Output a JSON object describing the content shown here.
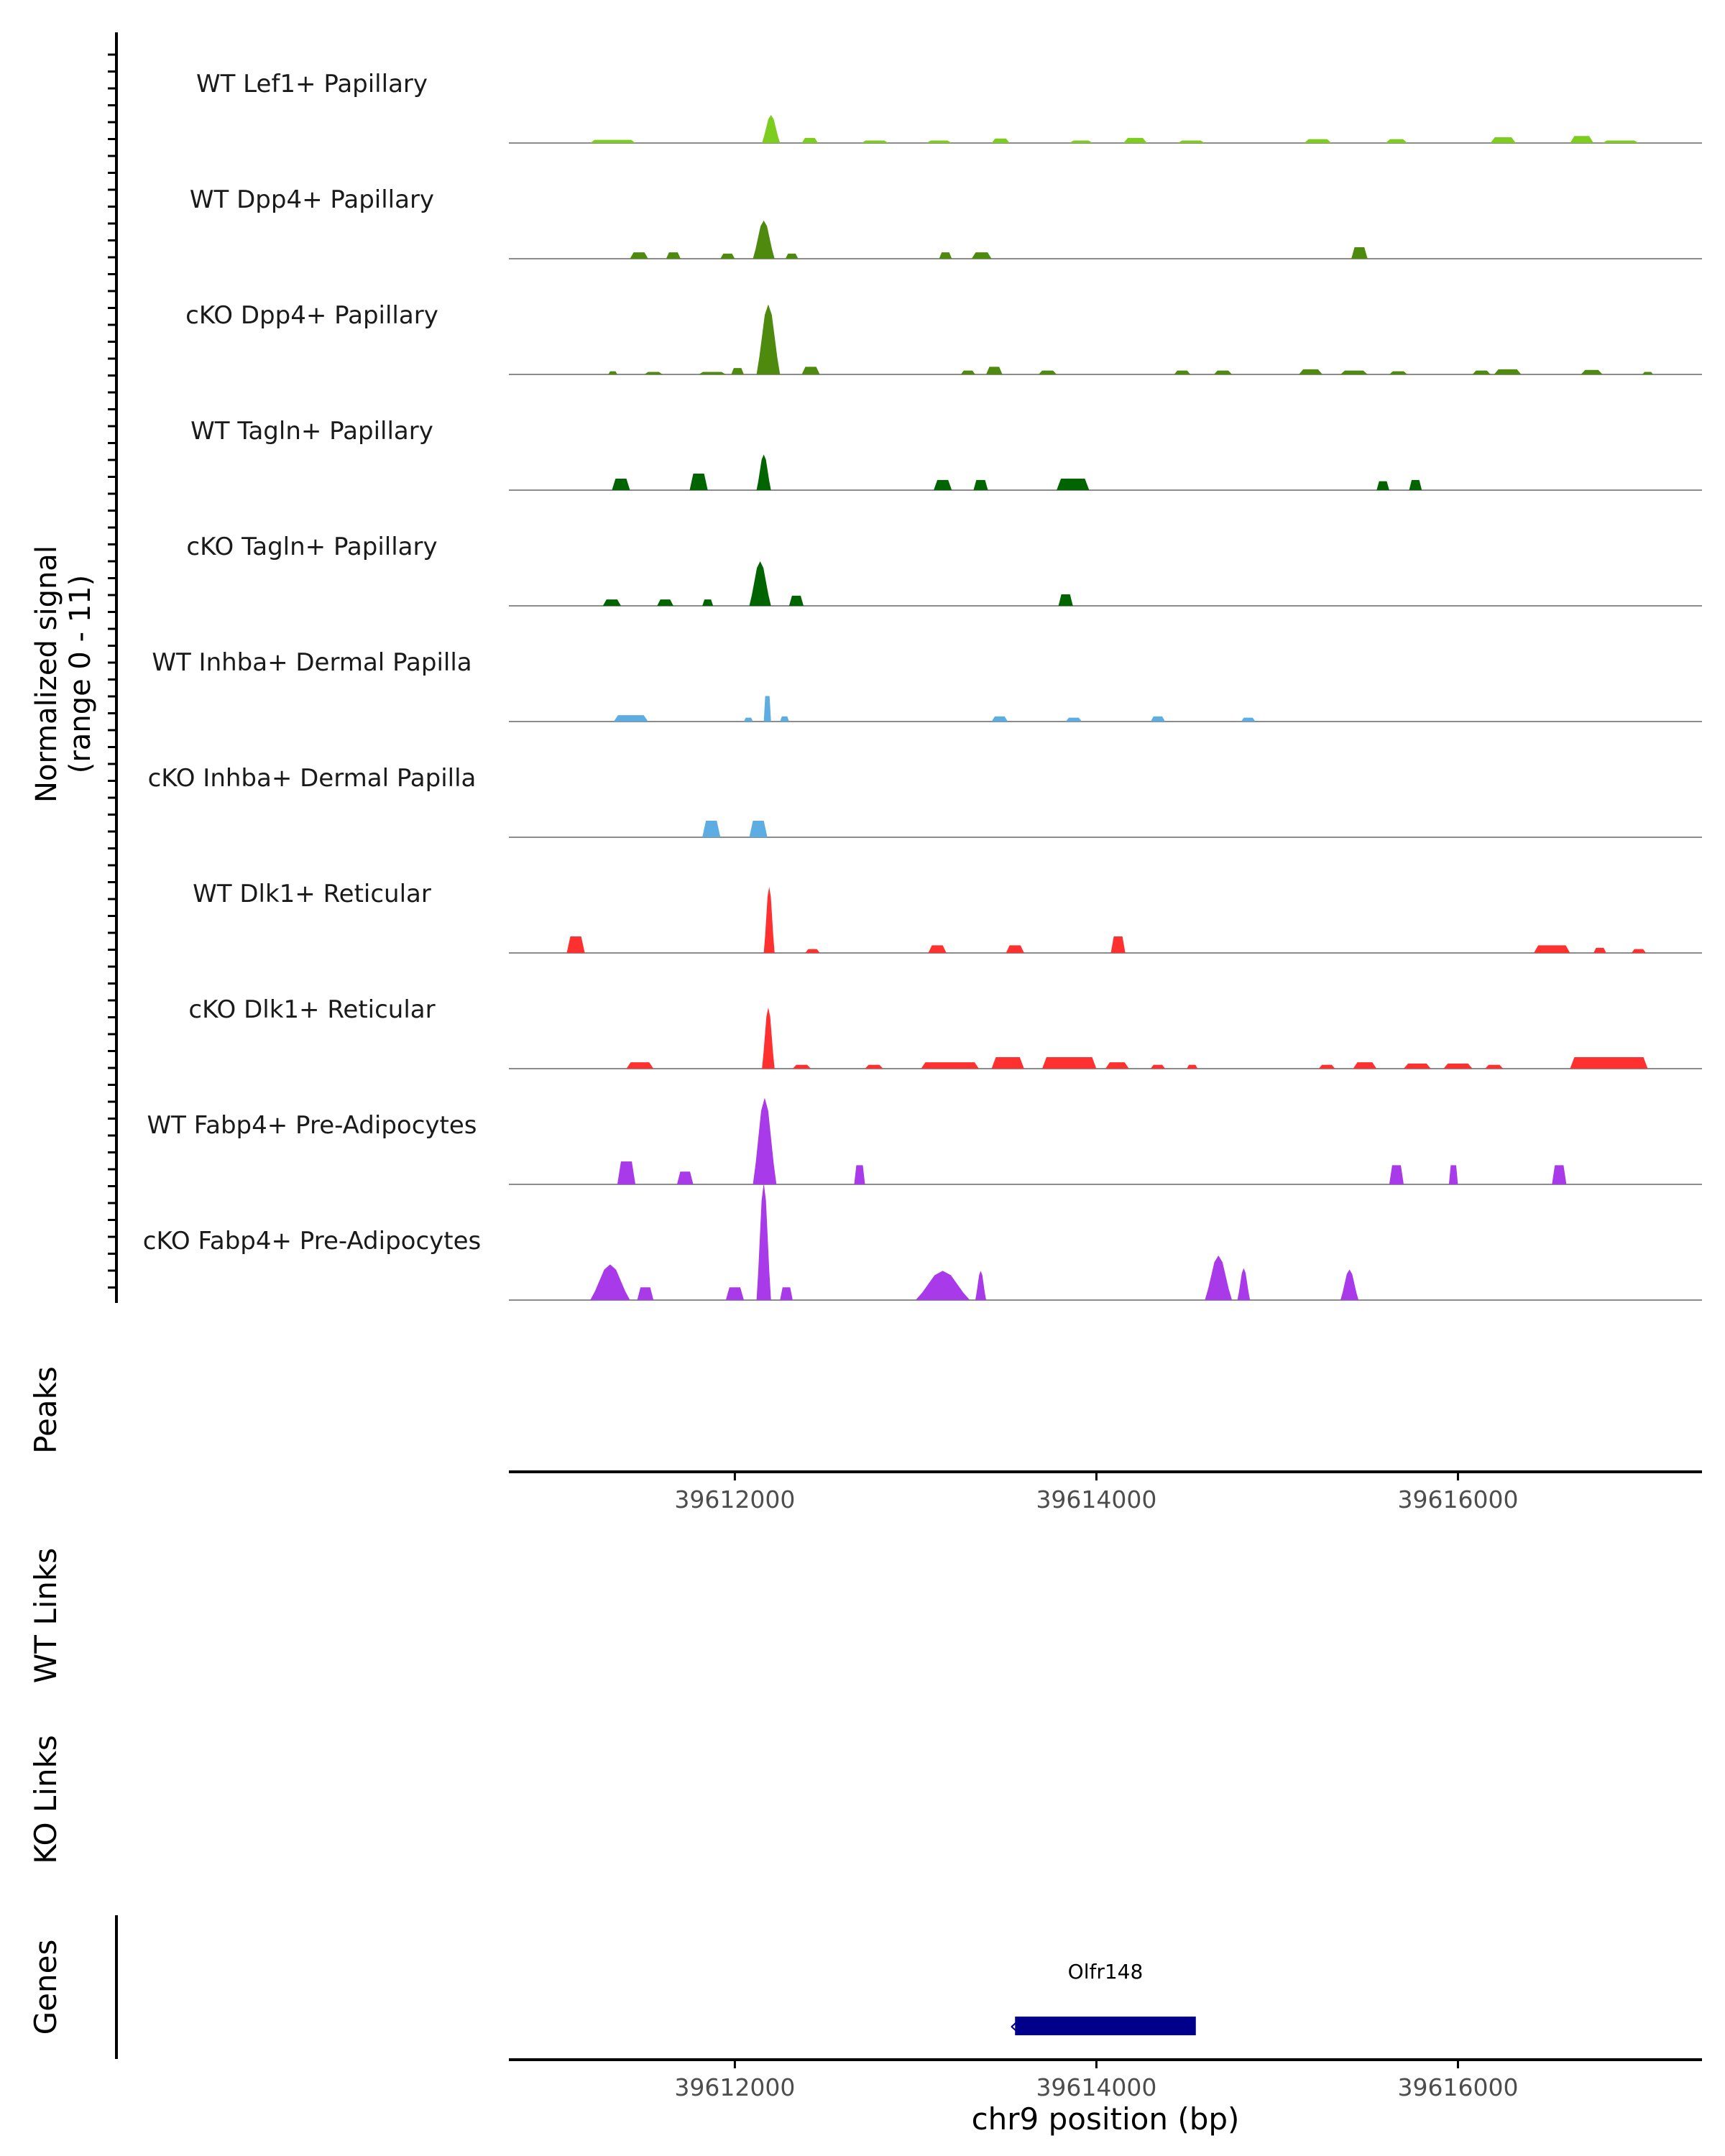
{
  "chart_data": {
    "type": "area",
    "y_axis_title_line1": "Normalized signal",
    "y_axis_title_line2": "(range 0 - 11)",
    "ylim": [
      0,
      11
    ],
    "xlim": [
      39610750,
      39617350
    ],
    "xlabel": "chr9 position (bp)",
    "x_ticks": [
      39612000,
      39614000,
      39616000
    ],
    "x_tick_labels": [
      "39612000",
      "39614000",
      "39616000"
    ],
    "tracks": [
      {
        "label": "WT Lef1+ Papillary",
        "color": "#7CCD1E",
        "peaks": [
          [
            39611200,
            39611450,
            0.25
          ],
          [
            39612150,
            39612250,
            2.2
          ],
          [
            39612370,
            39612460,
            0.4
          ],
          [
            39612700,
            39612850,
            0.2
          ],
          [
            39613060,
            39613200,
            0.2
          ],
          [
            39613420,
            39613520,
            0.35
          ],
          [
            39613850,
            39613980,
            0.2
          ],
          [
            39614150,
            39614280,
            0.4
          ],
          [
            39614450,
            39614600,
            0.2
          ],
          [
            39615150,
            39615300,
            0.3
          ],
          [
            39615600,
            39615720,
            0.3
          ],
          [
            39616180,
            39616320,
            0.45
          ],
          [
            39616620,
            39616750,
            0.55
          ],
          [
            39616800,
            39617000,
            0.2
          ]
        ]
      },
      {
        "label": "WT Dpp4+ Papillary",
        "color": "#4D8A0E",
        "peaks": [
          [
            39611420,
            39611520,
            0.5
          ],
          [
            39611620,
            39611700,
            0.5
          ],
          [
            39611920,
            39612000,
            0.4
          ],
          [
            39612100,
            39612220,
            3.0
          ],
          [
            39612280,
            39612350,
            0.4
          ],
          [
            39613130,
            39613200,
            0.5
          ],
          [
            39613310,
            39613420,
            0.5
          ],
          [
            39615410,
            39615500,
            0.9
          ]
        ]
      },
      {
        "label": "cKO Dpp4+ Papillary",
        "color": "#4D8A0E",
        "peaks": [
          [
            39611300,
            39611350,
            0.25
          ],
          [
            39611500,
            39611600,
            0.2
          ],
          [
            39611800,
            39611950,
            0.2
          ],
          [
            39611980,
            39612050,
            0.5
          ],
          [
            39612120,
            39612250,
            5.5
          ],
          [
            39612370,
            39612470,
            0.6
          ],
          [
            39613250,
            39613330,
            0.3
          ],
          [
            39613390,
            39613480,
            0.6
          ],
          [
            39613680,
            39613780,
            0.3
          ],
          [
            39614430,
            39614520,
            0.3
          ],
          [
            39614650,
            39614750,
            0.3
          ],
          [
            39615120,
            39615250,
            0.4
          ],
          [
            39615350,
            39615500,
            0.3
          ],
          [
            39615620,
            39615720,
            0.25
          ],
          [
            39616080,
            39616180,
            0.3
          ],
          [
            39616200,
            39616350,
            0.4
          ],
          [
            39616680,
            39616800,
            0.35
          ],
          [
            39617020,
            39617080,
            0.2
          ]
        ]
      },
      {
        "label": "WT Tagln+ Papillary",
        "color": "#006400",
        "peaks": [
          [
            39611320,
            39611420,
            0.9
          ],
          [
            39611750,
            39611850,
            1.3
          ],
          [
            39612120,
            39612200,
            2.8
          ],
          [
            39613100,
            39613200,
            0.8
          ],
          [
            39613320,
            39613400,
            0.8
          ],
          [
            39613780,
            39613960,
            0.9
          ],
          [
            39615550,
            39615620,
            0.7
          ],
          [
            39615730,
            39615800,
            0.8
          ]
        ]
      },
      {
        "label": "cKO Tagln+ Papillary",
        "color": "#006400",
        "peaks": [
          [
            39611270,
            39611370,
            0.5
          ],
          [
            39611570,
            39611660,
            0.5
          ],
          [
            39611820,
            39611880,
            0.5
          ],
          [
            39612080,
            39612200,
            3.5
          ],
          [
            39612300,
            39612380,
            0.8
          ],
          [
            39613790,
            39613870,
            0.9
          ]
        ]
      },
      {
        "label": "WT Inhba+ Dermal Papilla",
        "color": "#5DADE2",
        "peaks": [
          [
            39611330,
            39611520,
            0.5
          ],
          [
            39612050,
            39612100,
            0.3
          ],
          [
            39612160,
            39612200,
            2.0
          ],
          [
            39612250,
            39612300,
            0.4
          ],
          [
            39613420,
            39613510,
            0.4
          ],
          [
            39613830,
            39613920,
            0.3
          ],
          [
            39614300,
            39614380,
            0.4
          ],
          [
            39614800,
            39614880,
            0.3
          ]
        ]
      },
      {
        "label": "cKO Inhba+ Dermal Papilla",
        "color": "#5DADE2",
        "peaks": [
          [
            39611820,
            39611920,
            1.3
          ],
          [
            39612080,
            39612180,
            1.3
          ]
        ]
      },
      {
        "label": "WT Dlk1+ Reticular",
        "color": "#FF3030",
        "peaks": [
          [
            39611070,
            39611170,
            1.3
          ],
          [
            39612160,
            39612220,
            5.2
          ],
          [
            39612390,
            39612470,
            0.3
          ],
          [
            39613070,
            39613170,
            0.6
          ],
          [
            39613500,
            39613600,
            0.6
          ],
          [
            39614080,
            39614160,
            1.3
          ],
          [
            39616420,
            39616620,
            0.6
          ],
          [
            39616750,
            39616820,
            0.4
          ],
          [
            39616960,
            39617040,
            0.3
          ]
        ]
      },
      {
        "label": "cKO Dlk1+ Reticular",
        "color": "#FF3030",
        "peaks": [
          [
            39611400,
            39611550,
            0.5
          ],
          [
            39612150,
            39612220,
            4.8
          ],
          [
            39612320,
            39612420,
            0.3
          ],
          [
            39612720,
            39612820,
            0.3
          ],
          [
            39613030,
            39613350,
            0.5
          ],
          [
            39613420,
            39613600,
            0.9
          ],
          [
            39613700,
            39614000,
            0.9
          ],
          [
            39614050,
            39614180,
            0.5
          ],
          [
            39614300,
            39614380,
            0.3
          ],
          [
            39614500,
            39614560,
            0.3
          ],
          [
            39615230,
            39615320,
            0.3
          ],
          [
            39615420,
            39615550,
            0.5
          ],
          [
            39615700,
            39615850,
            0.4
          ],
          [
            39615920,
            39616080,
            0.4
          ],
          [
            39616150,
            39616250,
            0.3
          ],
          [
            39616620,
            39617050,
            0.9
          ]
        ]
      },
      {
        "label": "WT Fabp4+ Pre-Adipocytes",
        "color": "#A83AEA",
        "peaks": [
          [
            39611350,
            39611450,
            1.8
          ],
          [
            39611680,
            39611770,
            1.0
          ],
          [
            39612100,
            39612230,
            6.8
          ],
          [
            39612660,
            39612720,
            1.5
          ],
          [
            39615620,
            39615700,
            1.5
          ],
          [
            39615950,
            39616000,
            1.5
          ],
          [
            39616520,
            39616600,
            1.5
          ]
        ]
      },
      {
        "label": "cKO Fabp4+ Pre-Adipocytes",
        "color": "#A83AEA",
        "peaks": [
          [
            39611200,
            39611420,
            2.8
          ],
          [
            39611460,
            39611550,
            1.0
          ],
          [
            39611950,
            39612050,
            1.0
          ],
          [
            39612120,
            39612200,
            9.2
          ],
          [
            39612250,
            39612320,
            1.0
          ],
          [
            39613000,
            39613300,
            2.3
          ],
          [
            39613330,
            39613390,
            2.3
          ],
          [
            39614600,
            39614750,
            3.5
          ],
          [
            39614780,
            39614850,
            2.5
          ],
          [
            39615350,
            39615450,
            2.4
          ]
        ]
      }
    ],
    "panels": {
      "peaks": "Peaks",
      "wt_links": "WT Links",
      "ko_links": "KO Links",
      "genes": "Genes"
    },
    "gene": {
      "name": "Olfr148",
      "start": 39613550,
      "end": 39614550,
      "color": "#00008B",
      "strand": "-"
    }
  }
}
